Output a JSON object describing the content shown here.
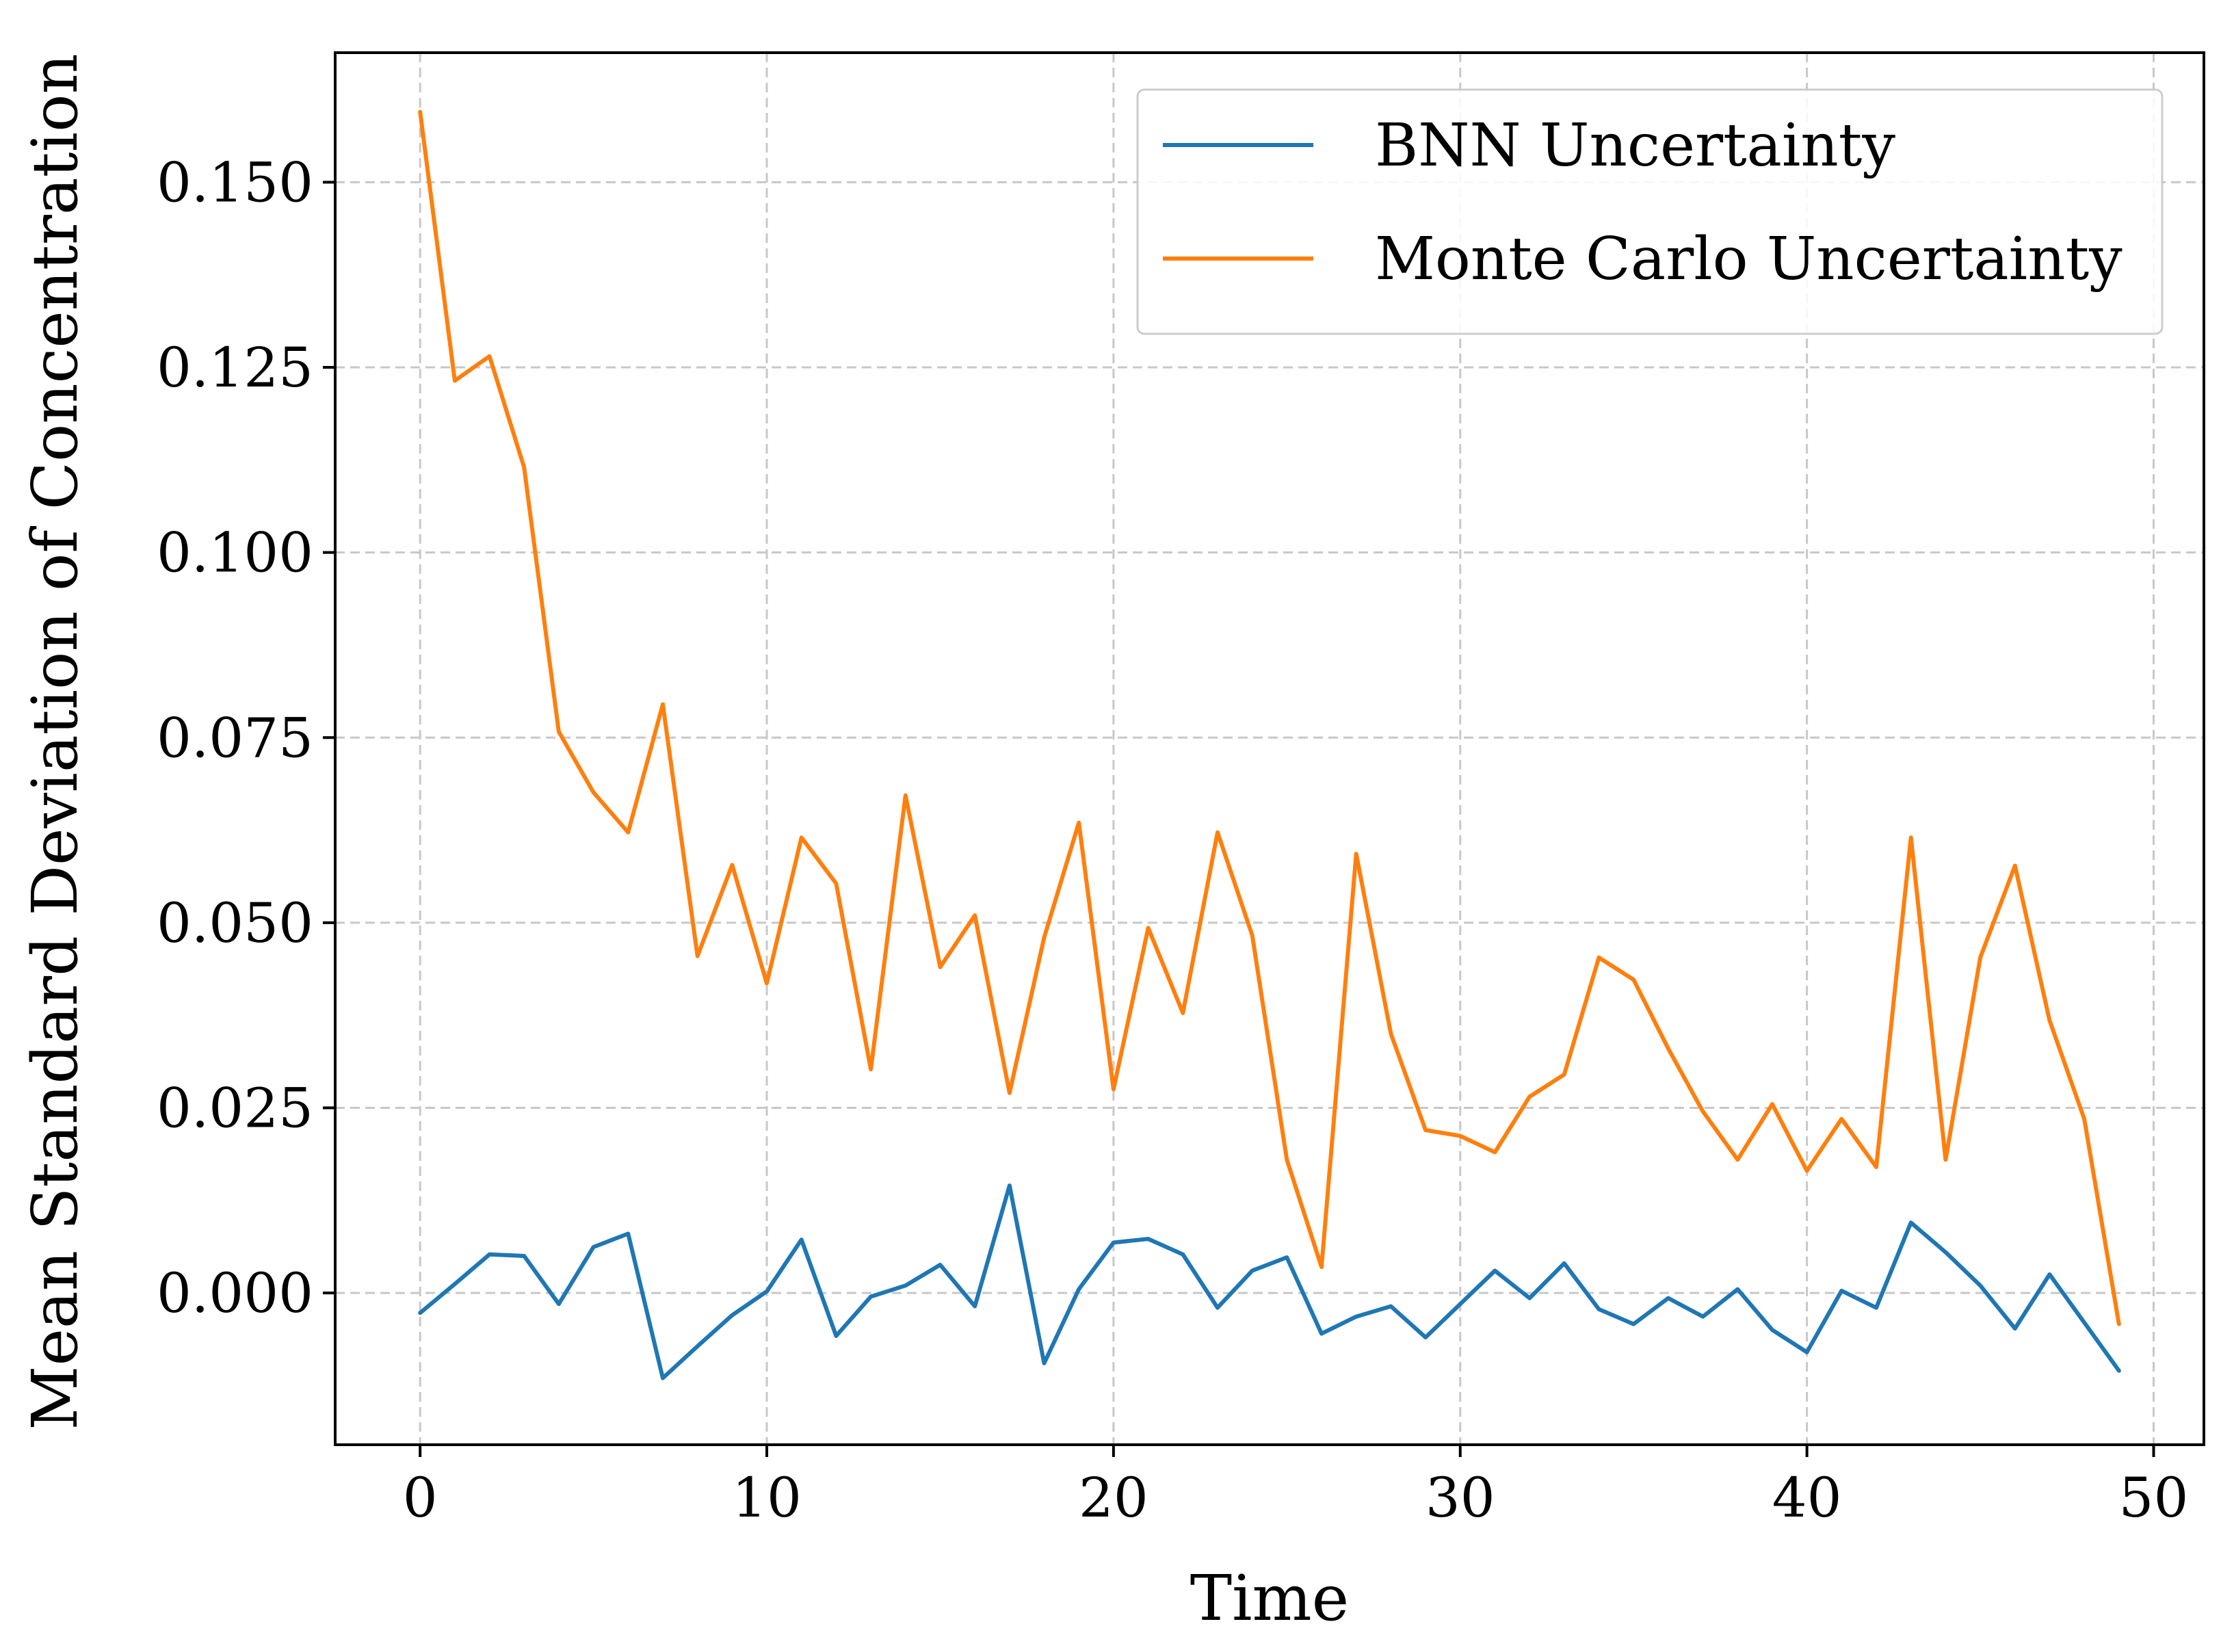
{
  "chart_data": {
    "type": "line",
    "title": "",
    "xlabel": "Time",
    "ylabel": "Mean Standard Deviation of Concentration",
    "xlim": [
      -2.45,
      51.45
    ],
    "ylim": [
      -0.0205,
      0.1675
    ],
    "xticks": [
      0,
      10,
      20,
      30,
      40,
      50
    ],
    "xtick_labels": [
      "0",
      "10",
      "20",
      "30",
      "40",
      "50"
    ],
    "yticks": [
      0.0,
      0.025,
      0.05,
      0.075,
      0.1,
      0.125,
      0.15
    ],
    "ytick_labels": [
      "0.000",
      "0.025",
      "0.050",
      "0.075",
      "0.100",
      "0.125",
      "0.150"
    ],
    "grid": true,
    "legend_position": "top-right",
    "x": [
      0,
      1,
      2,
      3,
      4,
      5,
      6,
      7,
      8,
      9,
      10,
      11,
      12,
      13,
      14,
      15,
      16,
      17,
      18,
      19,
      20,
      21,
      22,
      23,
      24,
      25,
      26,
      27,
      28,
      29,
      30,
      31,
      32,
      33,
      34,
      35,
      36,
      37,
      38,
      39,
      40,
      41,
      42,
      43,
      44,
      45,
      46,
      47,
      48,
      49
    ],
    "series": [
      {
        "name": "BNN Uncertainty",
        "color": "#1f77b4",
        "values": [
          -0.0027,
          0.0012,
          0.0052,
          0.005,
          -0.0015,
          0.0062,
          0.008,
          -0.0115,
          -0.0072,
          -0.003,
          0.0002,
          0.0072,
          -0.0058,
          -0.0005,
          0.001,
          0.0038,
          -0.0018,
          0.0145,
          -0.0095,
          0.0005,
          0.0068,
          0.0073,
          0.0052,
          -0.002,
          0.003,
          0.0048,
          -0.0055,
          -0.0032,
          -0.0018,
          -0.006,
          -0.0015,
          0.003,
          -0.0007,
          0.004,
          -0.0022,
          -0.0042,
          -0.0007,
          -0.0032,
          0.0005,
          -0.005,
          -0.008,
          0.0003,
          -0.002,
          0.0095,
          0.0055,
          0.001,
          -0.0048,
          0.0025,
          -0.004,
          -0.0105
        ]
      },
      {
        "name": "Monte Carlo Uncertainty",
        "color": "#ff7f0e",
        "values": [
          0.1595,
          0.1232,
          0.1265,
          0.1115,
          0.0758,
          0.0676,
          0.0622,
          0.0795,
          0.0455,
          0.0578,
          0.0418,
          0.0615,
          0.0553,
          0.0302,
          0.0672,
          0.044,
          0.051,
          0.027,
          0.048,
          0.0635,
          0.0275,
          0.0493,
          0.0378,
          0.0622,
          0.0483,
          0.018,
          0.0035,
          0.0593,
          0.035,
          0.022,
          0.0212,
          0.019,
          0.0265,
          0.0295,
          0.0453,
          0.0423,
          0.033,
          0.0245,
          0.018,
          0.0255,
          0.0165,
          0.0235,
          0.017,
          0.0615,
          0.018,
          0.0453,
          0.0577,
          0.0368,
          0.0235,
          -0.0042
        ]
      }
    ]
  }
}
